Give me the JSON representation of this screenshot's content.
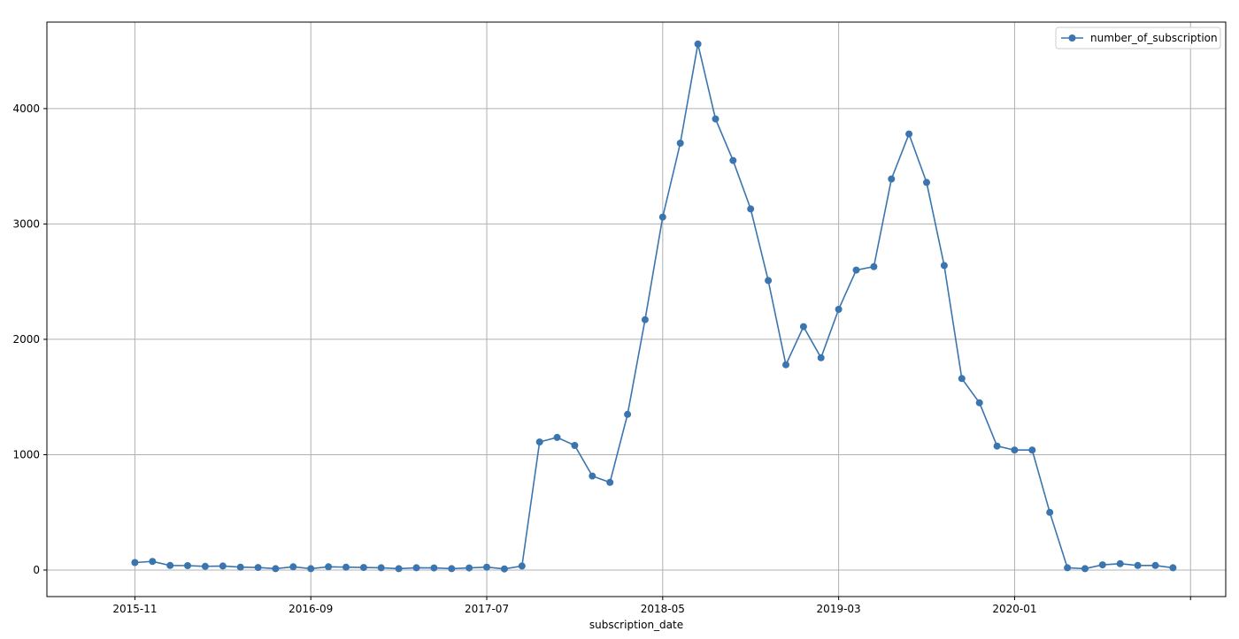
{
  "chart_data": {
    "type": "line",
    "xlabel": "subscription_date",
    "ylabel": "",
    "x_tick_labels": [
      "2015-11",
      "2016-09",
      "2017-07",
      "2018-05",
      "2019-03",
      "2020-01",
      ""
    ],
    "y_ticks": [
      0,
      1000,
      2000,
      3000,
      4000
    ],
    "ylim": [
      -230,
      4750
    ],
    "xlim": [
      "2015-06",
      "2021-01"
    ],
    "grid": true,
    "legend_position": "top-right",
    "marker": "circle",
    "colors": {
      "series": "#3a75af",
      "grid": "#b0b0b0",
      "axes": "#000000"
    },
    "x": [
      "2015-11",
      "2015-12",
      "2016-01",
      "2016-02",
      "2016-03",
      "2016-04",
      "2016-05",
      "2016-06",
      "2016-07",
      "2016-08",
      "2016-09",
      "2016-10",
      "2016-11",
      "2016-12",
      "2017-01",
      "2017-02",
      "2017-03",
      "2017-04",
      "2017-05",
      "2017-06",
      "2017-07",
      "2017-08",
      "2017-09",
      "2017-10",
      "2017-11",
      "2017-12",
      "2018-01",
      "2018-02",
      "2018-03",
      "2018-04",
      "2018-05",
      "2018-06",
      "2018-07",
      "2018-08",
      "2018-09",
      "2018-10",
      "2018-11",
      "2018-12",
      "2019-01",
      "2019-02",
      "2019-03",
      "2019-04",
      "2019-05",
      "2019-06",
      "2019-07",
      "2019-08",
      "2019-09",
      "2019-10",
      "2019-11",
      "2019-12",
      "2020-01",
      "2020-02",
      "2020-03",
      "2020-04",
      "2020-05",
      "2020-06",
      "2020-07",
      "2020-08",
      "2020-09",
      "2020-10"
    ],
    "series": [
      {
        "name": "number_of_subscription",
        "values": [
          65,
          75,
          40,
          38,
          32,
          35,
          25,
          22,
          12,
          28,
          12,
          28,
          25,
          22,
          20,
          12,
          20,
          18,
          12,
          18,
          25,
          10,
          35,
          1110,
          1150,
          1080,
          815,
          760,
          1350,
          2170,
          3060,
          3700,
          4560,
          3910,
          3550,
          3130,
          2510,
          1780,
          2110,
          1840,
          2260,
          2600,
          2630,
          3390,
          3780,
          3360,
          2640,
          1660,
          1450,
          1075,
          1040,
          1040,
          500,
          20,
          12,
          45,
          55,
          40,
          40,
          20
        ]
      }
    ]
  }
}
